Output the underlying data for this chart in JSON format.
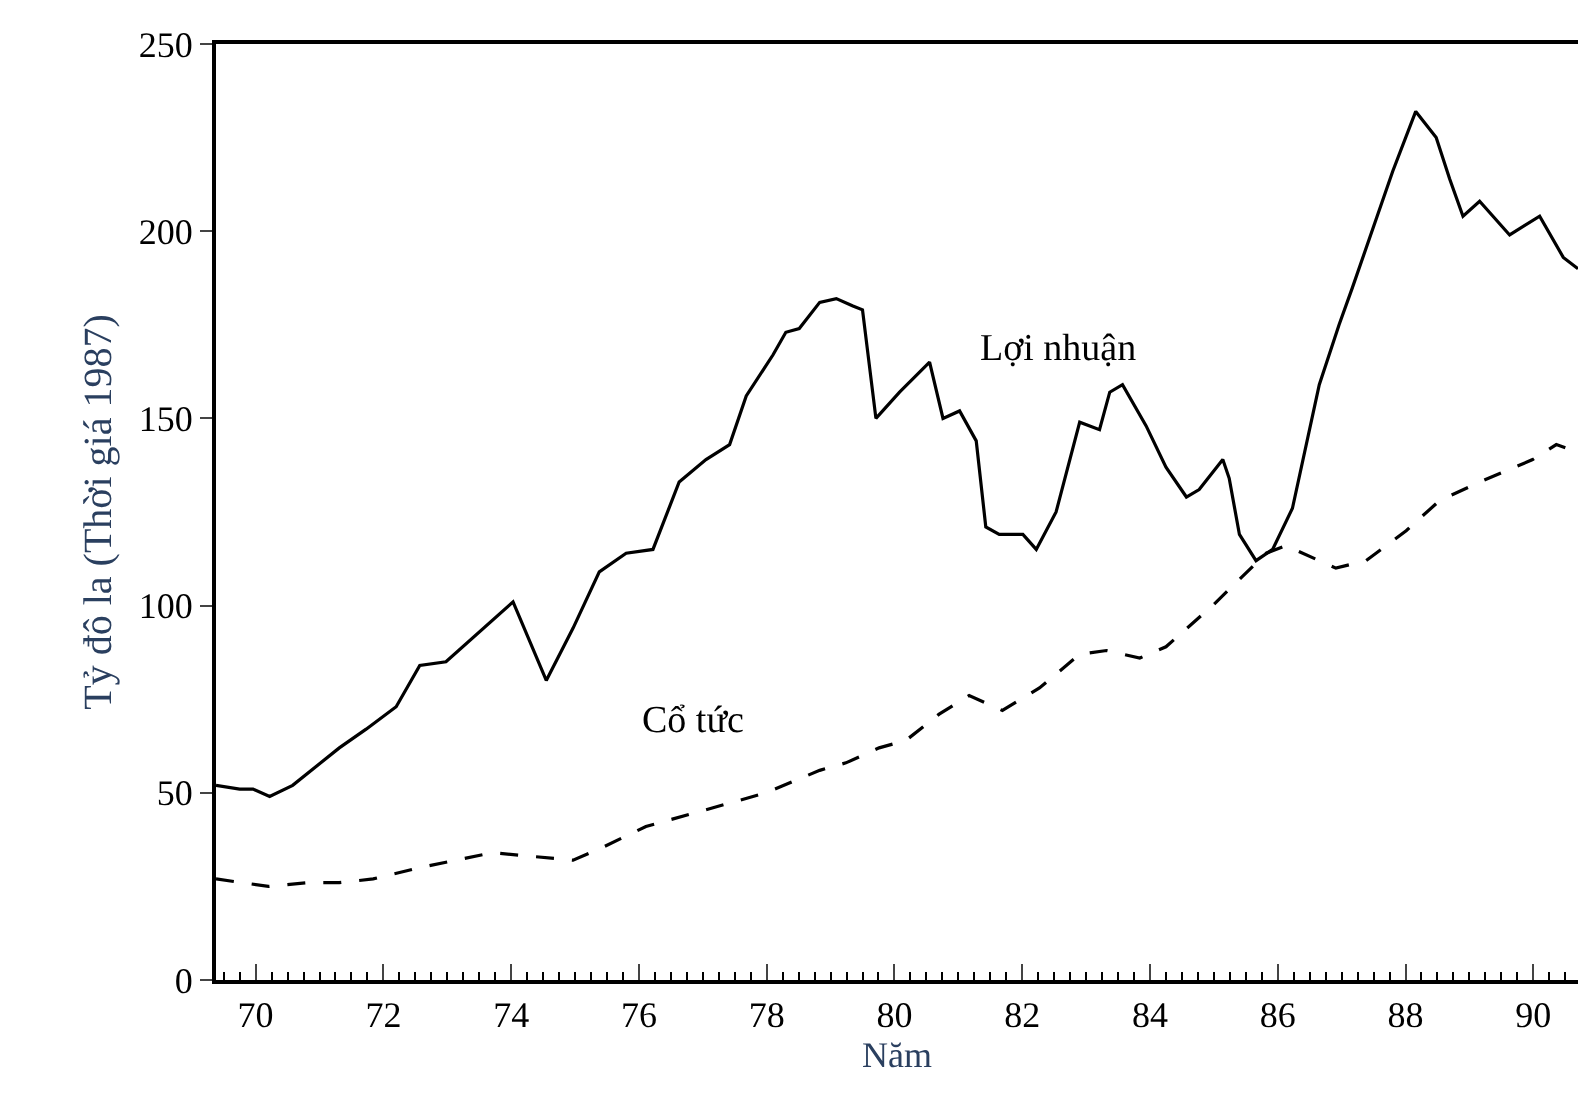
{
  "chart_data": {
    "type": "line",
    "xlabel": "Năm",
    "ylabel": "Tỷ đô la (Thời giá 1987)",
    "xlim": [
      69.38,
      90.7
    ],
    "ylim": [
      0,
      250
    ],
    "xticks": [
      {
        "value": 70,
        "label": "70"
      },
      {
        "value": 72,
        "label": "72"
      },
      {
        "value": 74,
        "label": "74"
      },
      {
        "value": 76,
        "label": "76"
      },
      {
        "value": 78,
        "label": "78"
      },
      {
        "value": 80,
        "label": "80"
      },
      {
        "value": 82,
        "label": "82"
      },
      {
        "value": 84,
        "label": "84"
      },
      {
        "value": 86,
        "label": "86"
      },
      {
        "value": 88,
        "label": "88"
      },
      {
        "value": 90,
        "label": "90"
      }
    ],
    "yticks": [
      0,
      50,
      100,
      150,
      200,
      250
    ],
    "legend": false,
    "marker": "none",
    "series": [
      {
        "name": "Lợi nhuận",
        "color": "#000000",
        "line_style": "solid",
        "x": [
          69.38,
          69.75,
          69.96,
          70.22,
          70.58,
          71.31,
          71.73,
          72.2,
          72.57,
          72.98,
          74.03,
          74.55,
          74.97,
          75.38,
          75.8,
          76.22,
          76.63,
          77.05,
          77.42,
          77.68,
          78.1,
          78.3,
          78.51,
          78.83,
          79.09,
          79.35,
          79.5,
          79.71,
          80.08,
          80.55,
          80.76,
          81.02,
          81.28,
          81.43,
          81.64,
          82.01,
          82.22,
          82.53,
          82.9,
          83.21,
          83.37,
          83.57,
          83.94,
          84.25,
          84.57,
          84.77,
          85.14,
          85.24,
          85.4,
          85.66,
          85.92,
          86.23,
          86.65,
          86.96,
          87.17,
          87.8,
          88.16,
          88.48,
          88.69,
          88.9,
          89.16,
          89.63,
          90.1,
          90.47,
          90.7
        ],
        "values": [
          52,
          51,
          51,
          49,
          52,
          62,
          67,
          73,
          84,
          85,
          101,
          80,
          94,
          109,
          114,
          115,
          133,
          139,
          143,
          156,
          167,
          173,
          174,
          181,
          182,
          180,
          179,
          150,
          157,
          165,
          150,
          152,
          144,
          121,
          119,
          119,
          115,
          125,
          149,
          147,
          157,
          159,
          148,
          137,
          129,
          131,
          139,
          134,
          119,
          112,
          115,
          126,
          159,
          175,
          185,
          216,
          232,
          225,
          214,
          204,
          208,
          199,
          204,
          193,
          190
        ]
      },
      {
        "name": "Cổ tức",
        "color": "#000000",
        "line_style": "dashed",
        "x": [
          69.38,
          70.2,
          70.8,
          71.31,
          71.84,
          72.57,
          73.71,
          74.97,
          75.38,
          76.11,
          76.95,
          77.99,
          78.83,
          79.24,
          79.76,
          80.18,
          80.7,
          81.17,
          81.69,
          82.27,
          82.9,
          83.32,
          83.84,
          84.25,
          84.98,
          85.82,
          86.13,
          86.91,
          87.38,
          88.01,
          88.53,
          89.16,
          89.99,
          90.36,
          90.7
        ],
        "values": [
          27,
          25,
          26,
          26,
          27,
          30,
          34,
          32,
          35,
          41,
          45,
          50,
          56,
          58,
          62,
          64,
          71,
          76,
          72,
          78,
          87,
          88,
          86,
          89,
          100,
          114,
          116,
          110,
          112,
          120,
          128,
          133,
          139,
          143,
          141
        ]
      }
    ]
  }
}
